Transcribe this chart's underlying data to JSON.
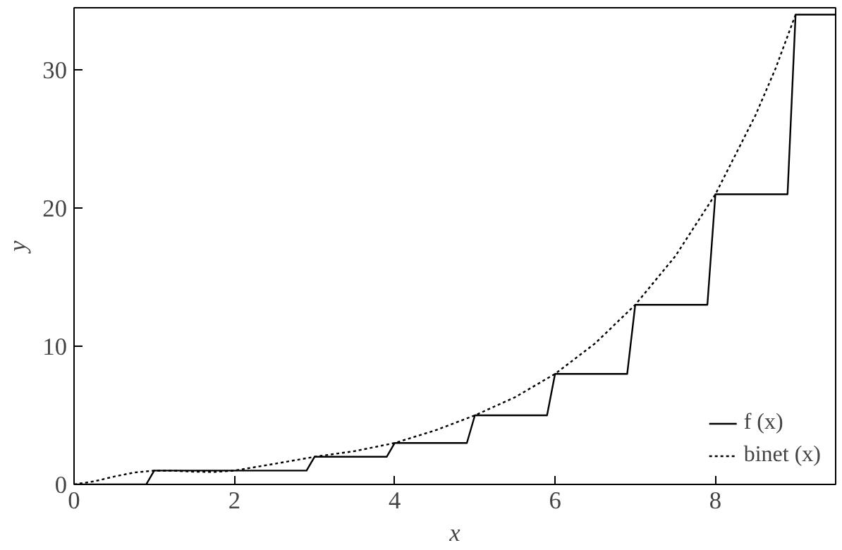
{
  "chart_data": {
    "type": "line",
    "xlabel": "x",
    "ylabel": "y",
    "xlim": [
      0,
      9.5
    ],
    "ylim": [
      0,
      34.5
    ],
    "xticks": [
      0,
      2,
      4,
      6,
      8
    ],
    "yticks": [
      0,
      10,
      20,
      30
    ],
    "grid": false,
    "legend": "bottom right",
    "marker": "none",
    "series": [
      {
        "name": "f (x)",
        "color": "#000000",
        "line_style": "solid",
        "x": [
          0,
          0.9,
          1,
          2.9,
          3,
          3.9,
          4,
          4.9,
          5,
          5.9,
          6,
          6.9,
          7,
          7.9,
          8,
          8.9,
          9,
          9.5
        ],
        "values": [
          0,
          0,
          1,
          1,
          2,
          2,
          3,
          3,
          5,
          5,
          8,
          8,
          13,
          13,
          21,
          21,
          34,
          34
        ]
      },
      {
        "name": "binet (x)",
        "color": "#000000",
        "line_style": "dotted",
        "x": [
          0,
          0.25,
          0.5,
          0.75,
          1,
          1.25,
          1.5,
          1.75,
          2,
          2.5,
          3,
          3.5,
          4,
          4.5,
          5,
          5.5,
          6,
          6.5,
          7,
          7.5,
          8,
          8.5,
          8.75,
          9
        ],
        "values": [
          0,
          0.22,
          0.57,
          0.86,
          1,
          0.99,
          0.92,
          0.9,
          1,
          1.49,
          2,
          2.41,
          3,
          3.9,
          5,
          6.31,
          8,
          10.21,
          13,
          16.52,
          21,
          26.72,
          30.1,
          34
        ]
      }
    ]
  }
}
